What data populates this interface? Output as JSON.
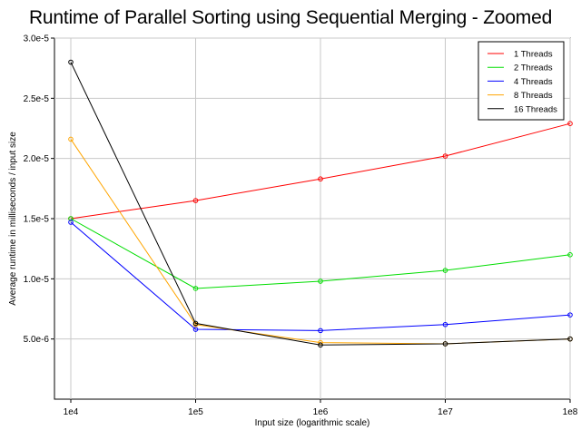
{
  "chart_data": {
    "type": "line",
    "title": "Runtime of Parallel Sorting using Sequential Merging - Zoomed",
    "xlabel": "Input size (logarithmic scale)",
    "ylabel": "Average runtime in milliseconds / input size",
    "x_scale": "log",
    "x": [
      10000,
      100000,
      1000000,
      10000000,
      100000000
    ],
    "x_tick_labels": [
      "1e4",
      "1e5",
      "1e6",
      "1e7",
      "1e8"
    ],
    "ylim": [
      0,
      3e-05
    ],
    "y_ticks": [
      5e-06,
      1e-05,
      1.5e-05,
      2e-05,
      2.5e-05,
      3e-05
    ],
    "y_tick_labels": [
      "5.0e-6",
      "1.0e-5",
      "1.5e-5",
      "2.0e-5",
      "2.5e-5",
      "3.0e-5"
    ],
    "grid": true,
    "legend_position": "top-right",
    "series": [
      {
        "name": "1 Threads",
        "color": "#ff0000",
        "values": [
          1.5e-05,
          1.65e-05,
          1.83e-05,
          2.02e-05,
          2.29e-05
        ]
      },
      {
        "name": "2 Threads",
        "color": "#00dd00",
        "values": [
          1.5e-05,
          9.2e-06,
          9.8e-06,
          1.07e-05,
          1.2e-05
        ]
      },
      {
        "name": "4 Threads",
        "color": "#0000ff",
        "values": [
          1.47e-05,
          5.8e-06,
          5.7e-06,
          6.2e-06,
          7e-06
        ]
      },
      {
        "name": "8 Threads",
        "color": "#ffa500",
        "values": [
          2.16e-05,
          6.2e-06,
          4.7e-06,
          4.6e-06,
          5e-06
        ]
      },
      {
        "name": "16 Threads",
        "color": "#000000",
        "values": [
          2.8e-05,
          6.3e-06,
          4.5e-06,
          4.6e-06,
          5e-06
        ]
      }
    ]
  }
}
